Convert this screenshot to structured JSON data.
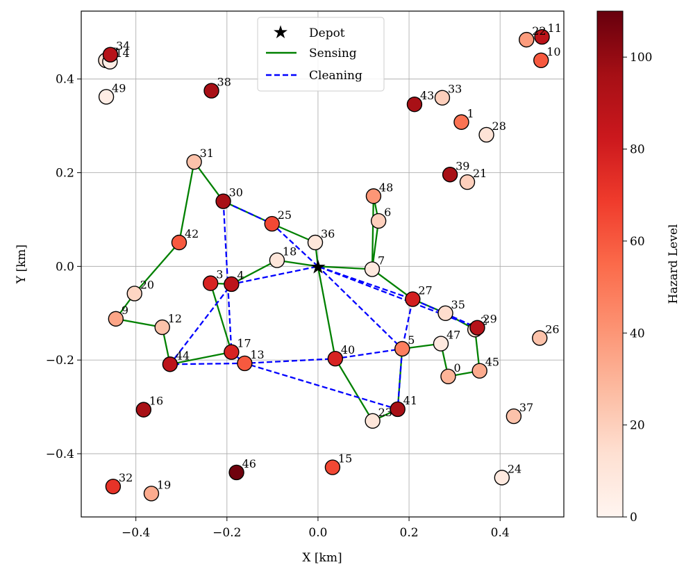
{
  "chart_data": {
    "type": "scatter",
    "xlabel": "X [km]",
    "ylabel": "Y [km]",
    "xlim": [
      -0.52,
      0.54
    ],
    "ylim": [
      -0.535,
      0.545
    ],
    "xticks": [
      -0.4,
      -0.2,
      0.0,
      0.2,
      0.4
    ],
    "xtick_labels": [
      "−0.4",
      "−0.2",
      "0.0",
      "0.2",
      "0.4"
    ],
    "yticks": [
      -0.4,
      -0.2,
      0.0,
      0.2,
      0.4
    ],
    "ytick_labels": [
      "−0.4",
      "−0.2",
      "0.0",
      "0.2",
      "0.4"
    ],
    "grid": true,
    "colormap": "Reds",
    "colorbar": {
      "label": "Hazard Level",
      "range": [
        0,
        110
      ],
      "ticks": [
        0,
        20,
        40,
        60,
        80,
        100
      ],
      "tick_labels": [
        "0",
        "20",
        "40",
        "60",
        "80",
        "100"
      ]
    },
    "legend": {
      "position": "top-center",
      "entries": [
        {
          "label": "Depot",
          "marker": "star",
          "color": "#000000"
        },
        {
          "label": "Sensing",
          "style": "solid",
          "color": "#008000"
        },
        {
          "label": "Cleaning",
          "style": "dashed",
          "color": "#0000ff"
        }
      ]
    },
    "depot": {
      "x": 0.0,
      "y": 0.0
    },
    "nodes": [
      {
        "id": "0",
        "x": 0.286,
        "y": -0.235,
        "hazard": 30
      },
      {
        "id": "1",
        "x": 0.315,
        "y": 0.308,
        "hazard": 52
      },
      {
        "id": "2",
        "x": 0.345,
        "y": -0.135,
        "hazard": 15
      },
      {
        "id": "3",
        "x": -0.236,
        "y": -0.036,
        "hazard": 78
      },
      {
        "id": "4",
        "x": -0.19,
        "y": -0.038,
        "hazard": 88
      },
      {
        "id": "5",
        "x": 0.185,
        "y": -0.176,
        "hazard": 48
      },
      {
        "id": "6",
        "x": 0.133,
        "y": 0.097,
        "hazard": 20
      },
      {
        "id": "7",
        "x": 0.119,
        "y": -0.006,
        "hazard": 8
      },
      {
        "id": "8",
        "x": -0.466,
        "y": 0.44,
        "hazard": 12
      },
      {
        "id": "9",
        "x": -0.444,
        "y": -0.112,
        "hazard": 35
      },
      {
        "id": "10",
        "x": 0.49,
        "y": 0.44,
        "hazard": 60
      },
      {
        "id": "11",
        "x": 0.492,
        "y": 0.49,
        "hazard": 88
      },
      {
        "id": "12",
        "x": -0.342,
        "y": -0.13,
        "hazard": 25
      },
      {
        "id": "13",
        "x": -0.161,
        "y": -0.207,
        "hazard": 60
      },
      {
        "id": "14",
        "x": -0.457,
        "y": 0.437,
        "hazard": 5
      },
      {
        "id": "15",
        "x": 0.032,
        "y": -0.429,
        "hazard": 65
      },
      {
        "id": "16",
        "x": -0.383,
        "y": -0.306,
        "hazard": 95
      },
      {
        "id": "17",
        "x": -0.19,
        "y": -0.183,
        "hazard": 78
      },
      {
        "id": "18",
        "x": -0.09,
        "y": 0.013,
        "hazard": 10
      },
      {
        "id": "19",
        "x": -0.366,
        "y": -0.485,
        "hazard": 33
      },
      {
        "id": "20",
        "x": -0.403,
        "y": -0.058,
        "hazard": 18
      },
      {
        "id": "21",
        "x": 0.328,
        "y": 0.18,
        "hazard": 20
      },
      {
        "id": "22",
        "x": 0.458,
        "y": 0.484,
        "hazard": 38
      },
      {
        "id": "23",
        "x": 0.12,
        "y": -0.33,
        "hazard": 10
      },
      {
        "id": "24",
        "x": 0.404,
        "y": -0.451,
        "hazard": 8
      },
      {
        "id": "25",
        "x": -0.101,
        "y": 0.091,
        "hazard": 65
      },
      {
        "id": "26",
        "x": 0.487,
        "y": -0.153,
        "hazard": 25
      },
      {
        "id": "27",
        "x": 0.208,
        "y": -0.07,
        "hazard": 80
      },
      {
        "id": "28",
        "x": 0.37,
        "y": 0.281,
        "hazard": 12
      },
      {
        "id": "29",
        "x": 0.35,
        "y": -0.131,
        "hazard": 90
      },
      {
        "id": "30",
        "x": -0.208,
        "y": 0.139,
        "hazard": 95
      },
      {
        "id": "31",
        "x": -0.272,
        "y": 0.223,
        "hazard": 25
      },
      {
        "id": "32",
        "x": -0.45,
        "y": -0.47,
        "hazard": 72
      },
      {
        "id": "33",
        "x": 0.273,
        "y": 0.36,
        "hazard": 20
      },
      {
        "id": "34",
        "x": -0.456,
        "y": 0.452,
        "hazard": 90
      },
      {
        "id": "35",
        "x": 0.28,
        "y": -0.1,
        "hazard": 15
      },
      {
        "id": "36",
        "x": -0.006,
        "y": 0.051,
        "hazard": 10
      },
      {
        "id": "37",
        "x": 0.43,
        "y": -0.32,
        "hazard": 25
      },
      {
        "id": "38",
        "x": -0.234,
        "y": 0.375,
        "hazard": 95
      },
      {
        "id": "39",
        "x": 0.29,
        "y": 0.196,
        "hazard": 95
      },
      {
        "id": "40",
        "x": 0.038,
        "y": -0.197,
        "hazard": 78
      },
      {
        "id": "41",
        "x": 0.175,
        "y": -0.305,
        "hazard": 95
      },
      {
        "id": "42",
        "x": -0.305,
        "y": 0.051,
        "hazard": 60
      },
      {
        "id": "43",
        "x": 0.212,
        "y": 0.346,
        "hazard": 95
      },
      {
        "id": "44",
        "x": -0.325,
        "y": -0.209,
        "hazard": 88
      },
      {
        "id": "45",
        "x": 0.355,
        "y": -0.223,
        "hazard": 33
      },
      {
        "id": "46",
        "x": -0.179,
        "y": -0.44,
        "hazard": 108
      },
      {
        "id": "47",
        "x": 0.27,
        "y": -0.165,
        "hazard": 8
      },
      {
        "id": "48",
        "x": 0.122,
        "y": 0.15,
        "hazard": 40
      },
      {
        "id": "49",
        "x": -0.465,
        "y": 0.362,
        "hazard": 5
      }
    ],
    "series": [
      {
        "name": "Sensing",
        "route": [
          "depot",
          "7",
          "6",
          "48",
          "7",
          "27",
          "35",
          "2",
          "45",
          "0",
          "47",
          "5",
          "41",
          "23",
          "40",
          "depot",
          "36",
          "25",
          "30",
          "31",
          "42",
          "20",
          "9",
          "12",
          "44",
          "17",
          "3",
          "4",
          "18",
          "depot"
        ]
      },
      {
        "name": "Cleaning",
        "route": [
          "depot",
          "25",
          "30",
          "17",
          "13",
          "44",
          "4",
          "depot",
          "27",
          "29",
          "depot",
          "27",
          "5",
          "41",
          "13",
          "40",
          "5",
          "depot"
        ]
      }
    ]
  }
}
